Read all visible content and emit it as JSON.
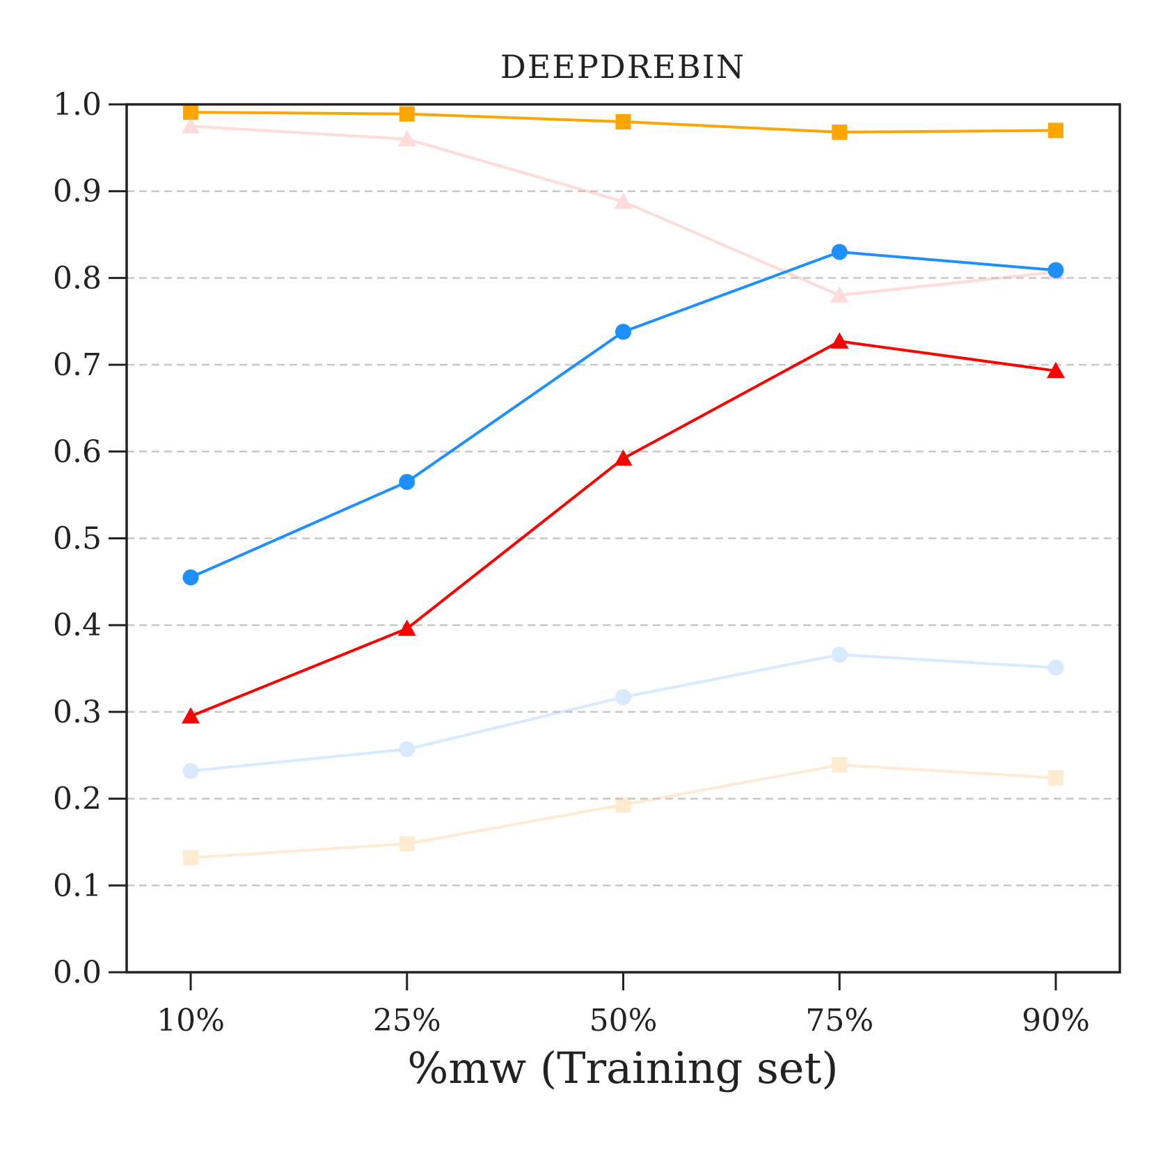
{
  "chart_data": {
    "type": "line",
    "title": "DEEPDREBIN",
    "xlabel": "%mw (Training set)",
    "ylabel": "",
    "categories": [
      "10%",
      "25%",
      "50%",
      "75%",
      "90%"
    ],
    "ylim": [
      0.0,
      1.0
    ],
    "yticks": [
      "0.0",
      "0.1",
      "0.2",
      "0.3",
      "0.4",
      "0.5",
      "0.6",
      "0.7",
      "0.8",
      "0.9",
      "1.0"
    ],
    "grid": "horizontal dashed",
    "legend": "none",
    "series": [
      {
        "name": "series-orange-square",
        "marker": "square",
        "color": "#FFA500",
        "opacity": 1.0,
        "values": [
          0.991,
          0.989,
          0.98,
          0.968,
          0.97
        ]
      },
      {
        "name": "series-pink-triangle",
        "marker": "triangle",
        "color": "#FF9999",
        "opacity": 0.35,
        "values": [
          0.975,
          0.96,
          0.888,
          0.78,
          0.807
        ]
      },
      {
        "name": "series-blue-circle",
        "marker": "circle",
        "color": "#1E8FFF",
        "opacity": 1.0,
        "values": [
          0.455,
          0.565,
          0.738,
          0.83,
          0.809
        ]
      },
      {
        "name": "series-red-triangle",
        "marker": "triangle",
        "color": "#FF0000",
        "opacity": 1.0,
        "values": [
          0.295,
          0.396,
          0.592,
          0.727,
          0.693
        ]
      },
      {
        "name": "series-lightblue-circle",
        "marker": "circle",
        "color": "#8FC4FF",
        "opacity": 0.35,
        "values": [
          0.232,
          0.257,
          0.317,
          0.366,
          0.351
        ]
      },
      {
        "name": "series-lightorange-square",
        "marker": "square",
        "color": "#FFC680",
        "opacity": 0.35,
        "values": [
          0.132,
          0.148,
          0.193,
          0.239,
          0.224
        ]
      }
    ]
  }
}
